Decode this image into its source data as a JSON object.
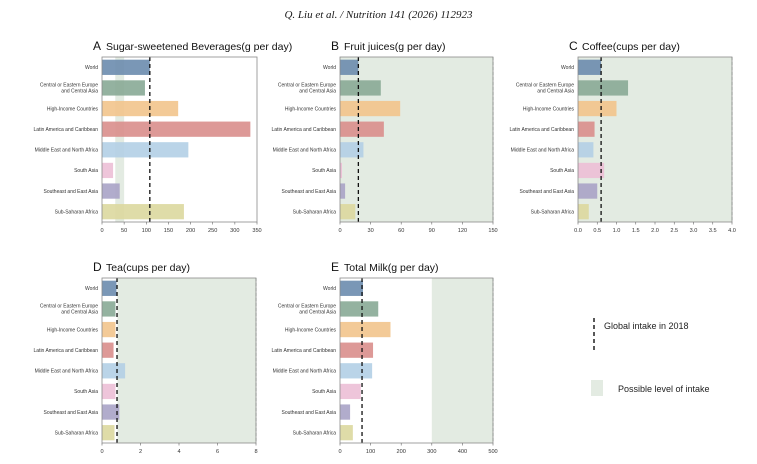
{
  "header": "Q. Liu et al. / Nutrition 141 (2026) 112923",
  "chart_data": [
    {
      "letter": "A",
      "title": "Sugar-sweetened  Beverages(g per day)",
      "type": "bar",
      "orientation": "horizontal",
      "categories": [
        "World",
        "Central or Eastern Europe and Central Asia",
        "High-Income Countries",
        "Latin America and Caribbean",
        "Middle East and North Africa",
        "South Asia",
        "Southeast and East Asia",
        "Sub-Saharan Africa"
      ],
      "values": [
        108,
        97,
        172,
        335,
        195,
        25,
        40,
        185
      ],
      "xlim": [
        0,
        350
      ],
      "xticks": [
        "0",
        "50",
        "100",
        "150",
        "200",
        "250",
        "300",
        "350"
      ],
      "tick_values": [
        0,
        50,
        100,
        150,
        200,
        250,
        300,
        350
      ],
      "global_intake_2018": 108,
      "possible_range": [
        30,
        50
      ]
    },
    {
      "letter": "B",
      "title": "Fruit juices(g per day)",
      "type": "bar",
      "orientation": "horizontal",
      "categories": [
        "World",
        "Central or Eastern Europe and Central Asia",
        "High-Income Countries",
        "Latin America and Caribbean",
        "Middle East and North Africa",
        "South Asia",
        "Southeast and East Asia",
        "Sub-Saharan Africa"
      ],
      "values": [
        18,
        40,
        59,
        43,
        23,
        2,
        5,
        15
      ],
      "xlim": [
        0,
        150
      ],
      "xticks": [
        "0",
        "30",
        "60",
        "90",
        "120",
        "150"
      ],
      "tick_values": [
        0,
        30,
        60,
        90,
        120,
        150
      ],
      "global_intake_2018": 18,
      "possible_range": [
        0,
        150
      ]
    },
    {
      "letter": "C",
      "title": "Coffee(cups per day)",
      "type": "bar",
      "orientation": "horizontal",
      "categories": [
        "World",
        "Central or Eastern Europe and Central Asia",
        "High-Income Countries",
        "Latin America and Caribbean",
        "Middle East and North Africa",
        "South Asia",
        "Southeast and East Asia",
        "Sub-Saharan Africa"
      ],
      "values": [
        0.6,
        1.3,
        1.0,
        0.43,
        0.4,
        0.68,
        0.5,
        0.28
      ],
      "xlim": [
        0,
        4
      ],
      "xticks": [
        "0.0",
        "0.5",
        "1.0",
        "1.5",
        "2.0",
        "2.5",
        "3.0",
        "3.5",
        "4.0"
      ],
      "tick_values": [
        0,
        0.5,
        1,
        1.5,
        2,
        2.5,
        3,
        3.5,
        4
      ],
      "global_intake_2018": 0.6,
      "possible_range": [
        0,
        4
      ]
    },
    {
      "letter": "D",
      "title": "Tea(cups per day)",
      "type": "bar",
      "orientation": "horizontal",
      "categories": [
        "World",
        "Central or Eastern Europe and Central Asia",
        "High-Income Countries",
        "Latin America and Caribbean",
        "Middle East and North Africa",
        "South Asia",
        "Southeast and East Asia",
        "Sub-Saharan Africa"
      ],
      "values": [
        0.75,
        0.7,
        0.7,
        0.6,
        1.2,
        0.7,
        0.9,
        0.65
      ],
      "xlim": [
        0,
        8
      ],
      "xticks": [
        "0",
        "2",
        "4",
        "6",
        "8"
      ],
      "tick_values": [
        0,
        2,
        4,
        6,
        8
      ],
      "global_intake_2018": 0.78,
      "possible_range": [
        0.8,
        8
      ]
    },
    {
      "letter": "E",
      "title": "Total Milk(g per day)",
      "type": "bar",
      "orientation": "horizontal",
      "categories": [
        "World",
        "Central or Eastern Europe and Central Asia",
        "High-Income Countries",
        "Latin America and Caribbean",
        "Middle East and North Africa",
        "South Asia",
        "Southeast and East Asia",
        "Sub-Saharan Africa"
      ],
      "values": [
        75,
        125,
        165,
        108,
        105,
        68,
        33,
        42
      ],
      "xlim": [
        0,
        500
      ],
      "xticks": [
        "0",
        "100",
        "200",
        "300",
        "400",
        "500"
      ],
      "tick_values": [
        0,
        100,
        200,
        300,
        400,
        500
      ],
      "global_intake_2018": 72,
      "possible_range": [
        300,
        500
      ]
    }
  ],
  "colors": [
    "#6b8cae",
    "#88aa96",
    "#f2c48c",
    "#d98e8c",
    "#b3cfe6",
    "#ecbfd6",
    "#a8a3c6",
    "#dcd89e"
  ],
  "possible_color": "#e3ebe2",
  "legend": {
    "placement": "right",
    "global_label": "Global intake in 2018",
    "possible_label": "Possible level of intake"
  }
}
